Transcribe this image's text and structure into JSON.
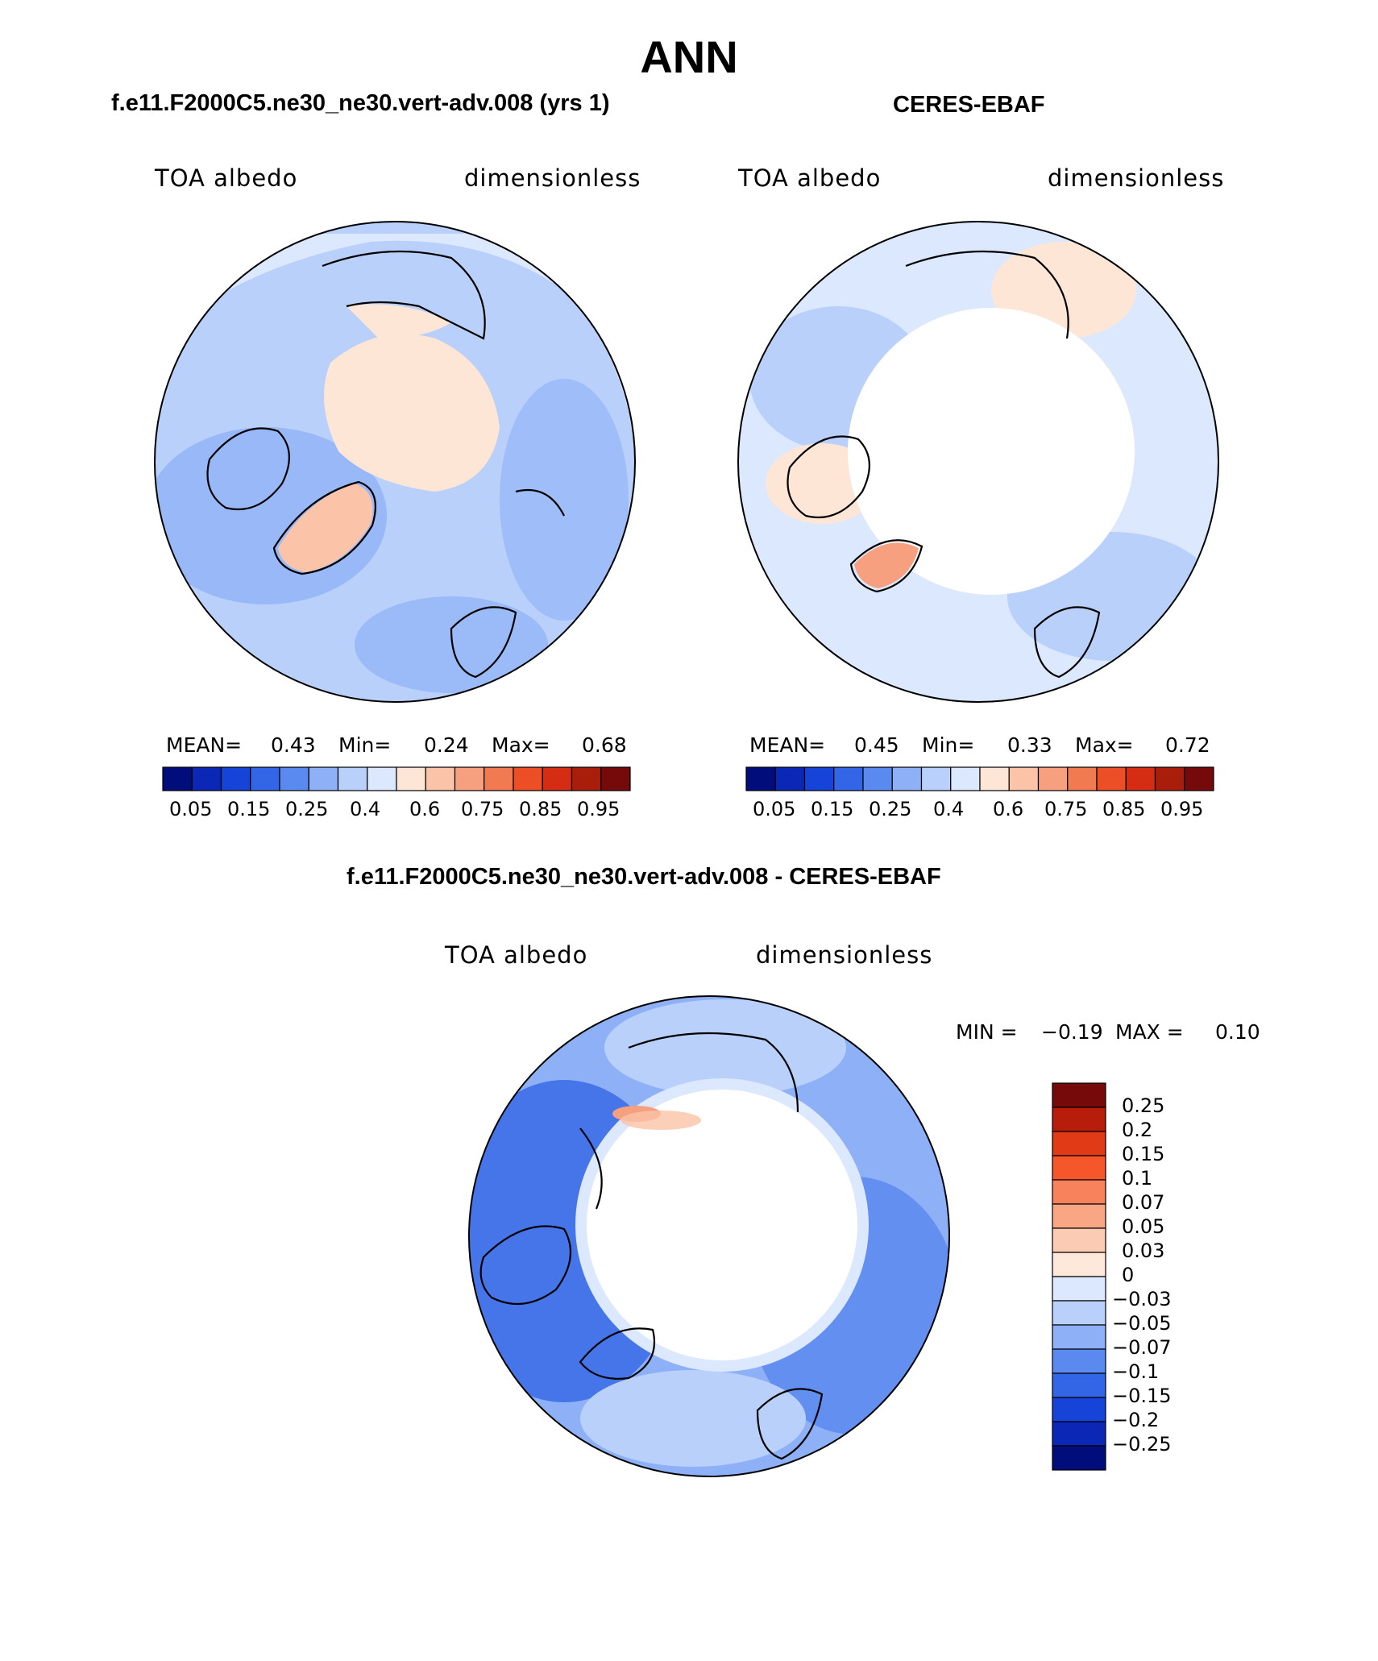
{
  "main_title": "ANN",
  "palette": {
    "abs": [
      "#000d7a",
      "#0a28b5",
      "#1744d8",
      "#3366e6",
      "#5a8aef",
      "#8db0f6",
      "#b9d0fb",
      "#dbe8fd",
      "#fde6d6",
      "#fbc3a7",
      "#f6a080",
      "#f17a50",
      "#ec4e26",
      "#d42d14",
      "#a81e0a",
      "#760a0a"
    ],
    "diff": [
      "#760a0a",
      "#b81c0a",
      "#e03a17",
      "#f5572b",
      "#f8825c",
      "#f9a685",
      "#fbcbb3",
      "#fde8da",
      "#dbe8fd",
      "#b9d0fb",
      "#8db0f6",
      "#5a8aef",
      "#3366e6",
      "#1744d8",
      "#0a28b5",
      "#000d7a"
    ]
  },
  "panels": [
    {
      "title": "f.e11.F2000C5.ne30_ne30.vert-adv.008 (yrs 1)",
      "left_label": "TOA albedo",
      "right_label": "dimensionless",
      "stats": {
        "mean_label": "MEAN=",
        "mean": "0.43",
        "min_label": "Min=",
        "min": "0.24",
        "max_label": "Max=",
        "max": "0.68"
      }
    },
    {
      "title": "CERES-EBAF",
      "left_label": "TOA albedo",
      "right_label": "dimensionless",
      "stats": {
        "mean_label": "MEAN=",
        "mean": "0.45",
        "min_label": "Min=",
        "min": "0.33",
        "max_label": "Max=",
        "max": "0.72"
      }
    }
  ],
  "diff_panel": {
    "title": "f.e11.F2000C5.ne30_ne30.vert-adv.008 - CERES-EBAF",
    "left_label": "TOA albedo",
    "right_label": "dimensionless",
    "min_label": "MIN =",
    "min": "−0.19",
    "max_label": "MAX =",
    "max": "0.10"
  },
  "chart_data": [
    {
      "type": "heatmap",
      "projection": "north polar stereographic",
      "title": "f.e11.F2000C5.ne30_ne30.vert-adv.008 (yrs 1)",
      "variable": "TOA albedo",
      "units": "dimensionless",
      "mean": 0.43,
      "min": 0.24,
      "max": 0.68,
      "colorbar_ticks": [
        "0.05",
        "0.15",
        "0.25",
        "0.4",
        "0.6",
        "0.75",
        "0.85",
        "0.95"
      ]
    },
    {
      "type": "heatmap",
      "projection": "north polar stereographic",
      "title": "CERES-EBAF",
      "variable": "TOA albedo",
      "units": "dimensionless",
      "mean": 0.45,
      "min": 0.33,
      "max": 0.72,
      "colorbar_ticks": [
        "0.05",
        "0.15",
        "0.25",
        "0.4",
        "0.6",
        "0.75",
        "0.85",
        "0.95"
      ]
    },
    {
      "type": "heatmap",
      "projection": "north polar stereographic",
      "title": "f.e11.F2000C5.ne30_ne30.vert-adv.008 - CERES-EBAF",
      "variable": "TOA albedo",
      "units": "dimensionless",
      "min": -0.19,
      "max": 0.1,
      "colorbar_ticks": [
        "0.25",
        "0.2",
        "0.15",
        "0.1",
        "0.07",
        "0.05",
        "0.03",
        "0",
        "−0.03",
        "−0.05",
        "−0.07",
        "−0.1",
        "−0.15",
        "−0.2",
        "−0.25"
      ]
    }
  ]
}
